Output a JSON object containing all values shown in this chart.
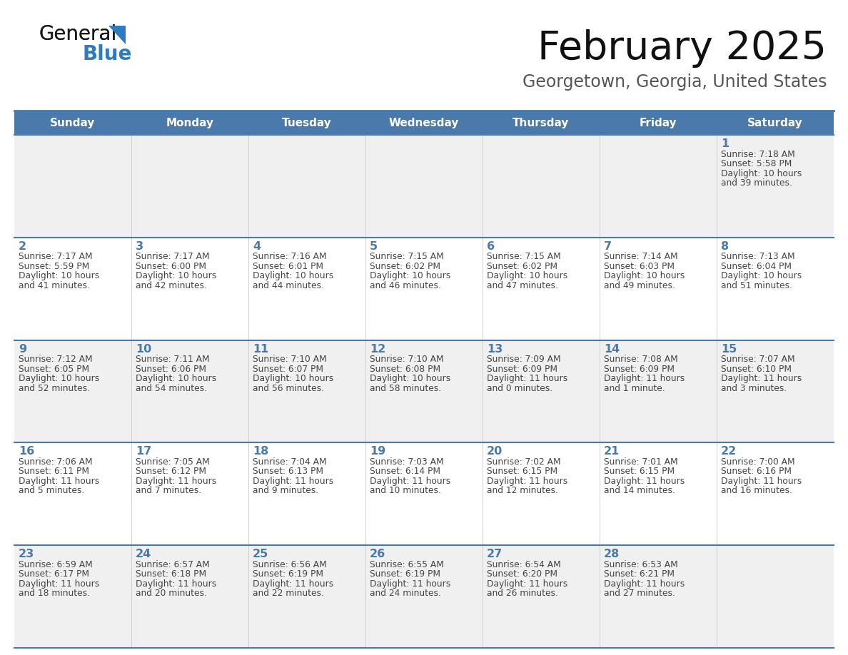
{
  "title": "February 2025",
  "subtitle": "Georgetown, Georgia, United States",
  "header_bg": "#4a7aac",
  "header_text_color": "#ffffff",
  "day_names": [
    "Sunday",
    "Monday",
    "Tuesday",
    "Wednesday",
    "Thursday",
    "Friday",
    "Saturday"
  ],
  "cell_bg_row0": "#f0f0f0",
  "cell_bg_row1": "#ffffff",
  "cell_text_color": "#444444",
  "day_num_color": "#4a7aac",
  "divider_color": "#4a7aac",
  "logo_general_color": "#1a1a1a",
  "logo_blue_color": "#2e7bbf",
  "logo_triangle_color": "#2e7bbf",
  "calendar_data": [
    {
      "day": 1,
      "col": 6,
      "row": 0,
      "sunrise": "7:18 AM",
      "sunset": "5:58 PM",
      "daylight_hours": 10,
      "daylight_minutes": 39
    },
    {
      "day": 2,
      "col": 0,
      "row": 1,
      "sunrise": "7:17 AM",
      "sunset": "5:59 PM",
      "daylight_hours": 10,
      "daylight_minutes": 41
    },
    {
      "day": 3,
      "col": 1,
      "row": 1,
      "sunrise": "7:17 AM",
      "sunset": "6:00 PM",
      "daylight_hours": 10,
      "daylight_minutes": 42
    },
    {
      "day": 4,
      "col": 2,
      "row": 1,
      "sunrise": "7:16 AM",
      "sunset": "6:01 PM",
      "daylight_hours": 10,
      "daylight_minutes": 44
    },
    {
      "day": 5,
      "col": 3,
      "row": 1,
      "sunrise": "7:15 AM",
      "sunset": "6:02 PM",
      "daylight_hours": 10,
      "daylight_minutes": 46
    },
    {
      "day": 6,
      "col": 4,
      "row": 1,
      "sunrise": "7:15 AM",
      "sunset": "6:02 PM",
      "daylight_hours": 10,
      "daylight_minutes": 47
    },
    {
      "day": 7,
      "col": 5,
      "row": 1,
      "sunrise": "7:14 AM",
      "sunset": "6:03 PM",
      "daylight_hours": 10,
      "daylight_minutes": 49
    },
    {
      "day": 8,
      "col": 6,
      "row": 1,
      "sunrise": "7:13 AM",
      "sunset": "6:04 PM",
      "daylight_hours": 10,
      "daylight_minutes": 51
    },
    {
      "day": 9,
      "col": 0,
      "row": 2,
      "sunrise": "7:12 AM",
      "sunset": "6:05 PM",
      "daylight_hours": 10,
      "daylight_minutes": 52
    },
    {
      "day": 10,
      "col": 1,
      "row": 2,
      "sunrise": "7:11 AM",
      "sunset": "6:06 PM",
      "daylight_hours": 10,
      "daylight_minutes": 54
    },
    {
      "day": 11,
      "col": 2,
      "row": 2,
      "sunrise": "7:10 AM",
      "sunset": "6:07 PM",
      "daylight_hours": 10,
      "daylight_minutes": 56
    },
    {
      "day": 12,
      "col": 3,
      "row": 2,
      "sunrise": "7:10 AM",
      "sunset": "6:08 PM",
      "daylight_hours": 10,
      "daylight_minutes": 58
    },
    {
      "day": 13,
      "col": 4,
      "row": 2,
      "sunrise": "7:09 AM",
      "sunset": "6:09 PM",
      "daylight_hours": 11,
      "daylight_minutes": 0
    },
    {
      "day": 14,
      "col": 5,
      "row": 2,
      "sunrise": "7:08 AM",
      "sunset": "6:09 PM",
      "daylight_hours": 11,
      "daylight_minutes": 1
    },
    {
      "day": 15,
      "col": 6,
      "row": 2,
      "sunrise": "7:07 AM",
      "sunset": "6:10 PM",
      "daylight_hours": 11,
      "daylight_minutes": 3
    },
    {
      "day": 16,
      "col": 0,
      "row": 3,
      "sunrise": "7:06 AM",
      "sunset": "6:11 PM",
      "daylight_hours": 11,
      "daylight_minutes": 5
    },
    {
      "day": 17,
      "col": 1,
      "row": 3,
      "sunrise": "7:05 AM",
      "sunset": "6:12 PM",
      "daylight_hours": 11,
      "daylight_minutes": 7
    },
    {
      "day": 18,
      "col": 2,
      "row": 3,
      "sunrise": "7:04 AM",
      "sunset": "6:13 PM",
      "daylight_hours": 11,
      "daylight_minutes": 9
    },
    {
      "day": 19,
      "col": 3,
      "row": 3,
      "sunrise": "7:03 AM",
      "sunset": "6:14 PM",
      "daylight_hours": 11,
      "daylight_minutes": 10
    },
    {
      "day": 20,
      "col": 4,
      "row": 3,
      "sunrise": "7:02 AM",
      "sunset": "6:15 PM",
      "daylight_hours": 11,
      "daylight_minutes": 12
    },
    {
      "day": 21,
      "col": 5,
      "row": 3,
      "sunrise": "7:01 AM",
      "sunset": "6:15 PM",
      "daylight_hours": 11,
      "daylight_minutes": 14
    },
    {
      "day": 22,
      "col": 6,
      "row": 3,
      "sunrise": "7:00 AM",
      "sunset": "6:16 PM",
      "daylight_hours": 11,
      "daylight_minutes": 16
    },
    {
      "day": 23,
      "col": 0,
      "row": 4,
      "sunrise": "6:59 AM",
      "sunset": "6:17 PM",
      "daylight_hours": 11,
      "daylight_minutes": 18
    },
    {
      "day": 24,
      "col": 1,
      "row": 4,
      "sunrise": "6:57 AM",
      "sunset": "6:18 PM",
      "daylight_hours": 11,
      "daylight_minutes": 20
    },
    {
      "day": 25,
      "col": 2,
      "row": 4,
      "sunrise": "6:56 AM",
      "sunset": "6:19 PM",
      "daylight_hours": 11,
      "daylight_minutes": 22
    },
    {
      "day": 26,
      "col": 3,
      "row": 4,
      "sunrise": "6:55 AM",
      "sunset": "6:19 PM",
      "daylight_hours": 11,
      "daylight_minutes": 24
    },
    {
      "day": 27,
      "col": 4,
      "row": 4,
      "sunrise": "6:54 AM",
      "sunset": "6:20 PM",
      "daylight_hours": 11,
      "daylight_minutes": 26
    },
    {
      "day": 28,
      "col": 5,
      "row": 4,
      "sunrise": "6:53 AM",
      "sunset": "6:21 PM",
      "daylight_hours": 11,
      "daylight_minutes": 27
    }
  ]
}
